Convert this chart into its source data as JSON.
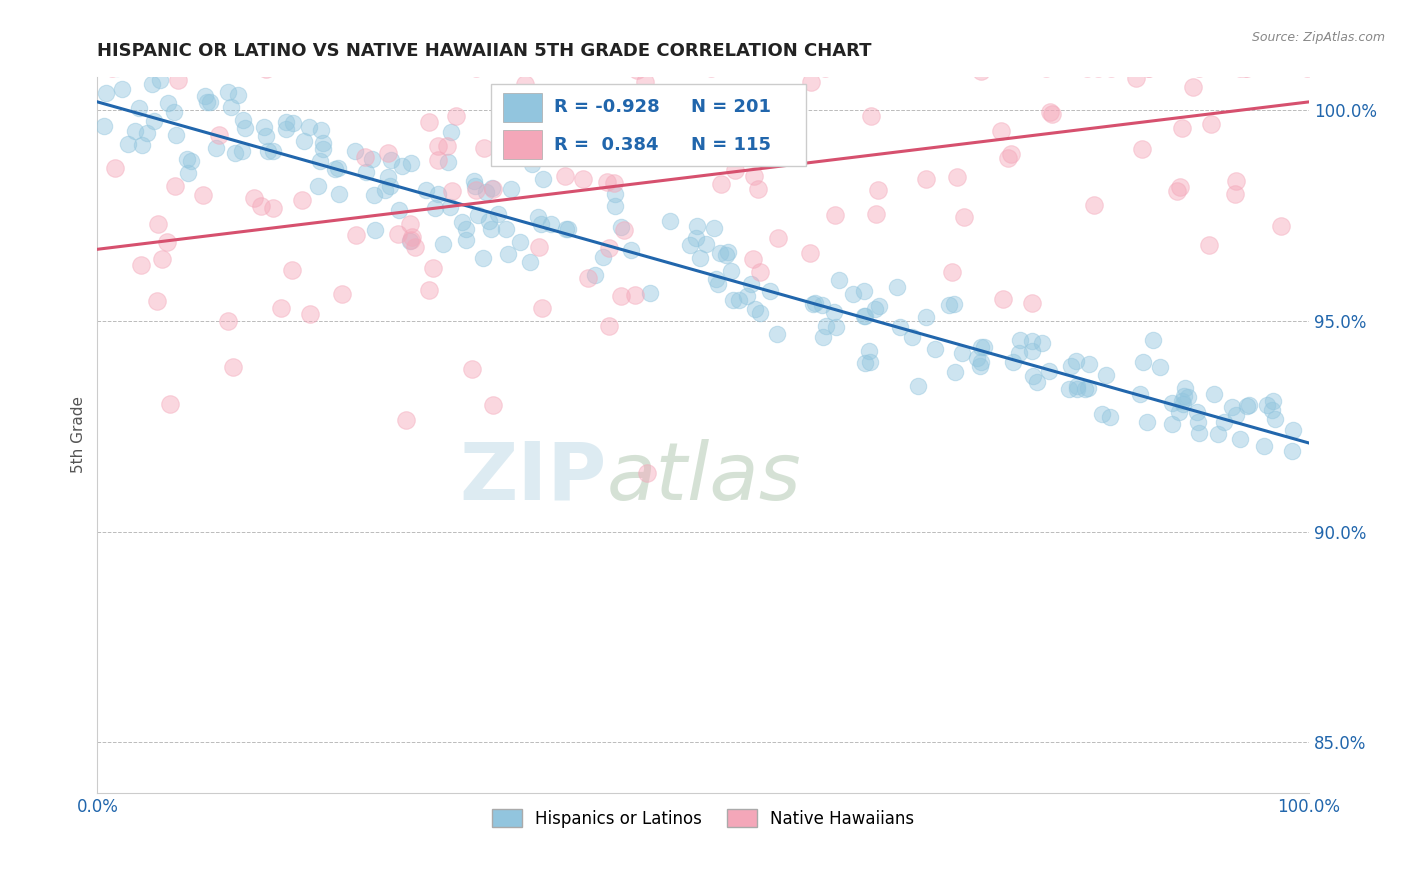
{
  "title": "HISPANIC OR LATINO VS NATIVE HAWAIIAN 5TH GRADE CORRELATION CHART",
  "source_text": "Source: ZipAtlas.com",
  "ylabel": "5th Grade",
  "xlim": [
    0.0,
    1.0
  ],
  "ylim": [
    0.838,
    1.008
  ],
  "yticks": [
    0.85,
    0.9,
    0.95,
    1.0
  ],
  "ytick_labels": [
    "85.0%",
    "90.0%",
    "95.0%",
    "100.0%"
  ],
  "xticks": [
    0.0,
    0.25,
    0.5,
    0.75,
    1.0
  ],
  "xtick_labels": [
    "0.0%",
    "",
    "",
    "",
    "100.0%"
  ],
  "blue_R": -0.928,
  "blue_N": 201,
  "pink_R": 0.384,
  "pink_N": 115,
  "blue_color": "#92c5de",
  "pink_color": "#f4a7b9",
  "blue_line_color": "#2166ac",
  "pink_line_color": "#d6506e",
  "legend_label_blue": "Hispanics or Latinos",
  "legend_label_pink": "Native Hawaiians",
  "background_color": "#ffffff",
  "watermark_zip": "ZIP",
  "watermark_atlas": "atlas",
  "blue_seed": 42,
  "pink_seed": 77,
  "blue_line_start_y": 1.002,
  "blue_line_end_y": 0.921,
  "pink_line_start_y": 0.967,
  "pink_line_end_y": 1.002
}
